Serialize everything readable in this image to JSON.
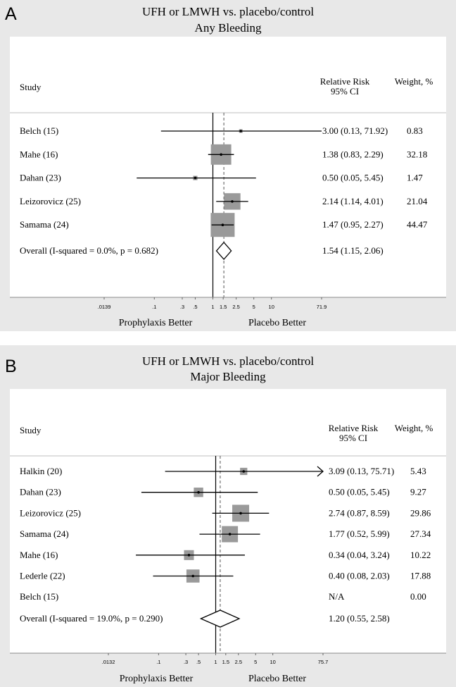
{
  "chart_data": [
    {
      "type": "forest",
      "panel_letter": "A",
      "title": "UFH or LMWH vs. placebo/control",
      "subtitle": "Any Bleeding",
      "columns": {
        "study": "Study",
        "rr_line1": "Relative Risk",
        "rr_line2": "95% CI",
        "weight": "Weight, %"
      },
      "xscale": "log",
      "xlim": [
        0.0139,
        71.9
      ],
      "ticks": [
        {
          "value": 0.0139,
          "label": ".0139"
        },
        {
          "value": 0.1,
          "label": ".1"
        },
        {
          "value": 0.3,
          "label": ".3"
        },
        {
          "value": 0.5,
          "label": ".5"
        },
        {
          "value": 1,
          "label": "1"
        },
        {
          "value": 1.5,
          "label": "1.5"
        },
        {
          "value": 2.5,
          "label": "2.5"
        },
        {
          "value": 5,
          "label": "5"
        },
        {
          "value": 10,
          "label": "10"
        },
        {
          "value": 71.9,
          "label": "71.9"
        }
      ],
      "studies": [
        {
          "name": "Belch (15)",
          "rr": 3.0,
          "lo": 0.13,
          "hi": 71.92,
          "ci_text": "3.00 (0.13, 71.92)",
          "weight": 0.83,
          "weight_text": "0.83"
        },
        {
          "name": "Mahe (16)",
          "rr": 1.38,
          "lo": 0.83,
          "hi": 2.29,
          "ci_text": "1.38 (0.83, 2.29)",
          "weight": 32.18,
          "weight_text": "32.18"
        },
        {
          "name": "Dahan (23)",
          "rr": 0.5,
          "lo": 0.05,
          "hi": 5.45,
          "ci_text": "0.50 (0.05, 5.45)",
          "weight": 1.47,
          "weight_text": "1.47"
        },
        {
          "name": "Leizorovicz (25)",
          "rr": 2.14,
          "lo": 1.14,
          "hi": 4.01,
          "ci_text": "2.14 (1.14, 4.01)",
          "weight": 21.04,
          "weight_text": "21.04"
        },
        {
          "name": "Samama (24)",
          "rr": 1.47,
          "lo": 0.95,
          "hi": 2.27,
          "ci_text": "1.47 (0.95, 2.27)",
          "weight": 44.47,
          "weight_text": "44.47"
        }
      ],
      "overall": {
        "label": "Overall  (I-squared = 0.0%, p = 0.682)",
        "rr": 1.54,
        "lo": 1.15,
        "hi": 2.06,
        "ci_text": "1.54 (1.15, 2.06)"
      },
      "left_label": "Prophylaxis Better",
      "right_label": "Placebo Better"
    },
    {
      "type": "forest",
      "panel_letter": "B",
      "title": "UFH or LMWH vs. placebo/control",
      "subtitle": "Major Bleeding",
      "columns": {
        "study": "Study",
        "rr_line1": "Relative Risk",
        "rr_line2": "95% CI",
        "weight": "Weight, %"
      },
      "xscale": "log",
      "xlim": [
        0.0132,
        75.7
      ],
      "ticks": [
        {
          "value": 0.0132,
          "label": ".0132"
        },
        {
          "value": 0.1,
          "label": ".1"
        },
        {
          "value": 0.3,
          "label": ".3"
        },
        {
          "value": 0.5,
          "label": ".5"
        },
        {
          "value": 1,
          "label": "1"
        },
        {
          "value": 1.5,
          "label": "1.5"
        },
        {
          "value": 2.5,
          "label": "2.5"
        },
        {
          "value": 5,
          "label": "5"
        },
        {
          "value": 10,
          "label": "10"
        },
        {
          "value": 75.7,
          "label": "75.7"
        }
      ],
      "studies": [
        {
          "name": "Halkin (20)",
          "rr": 3.09,
          "lo": 0.13,
          "hi": 75.71,
          "ci_text": "3.09 (0.13, 75.71)",
          "weight": 5.43,
          "weight_text": "5.43",
          "arrow_right": true
        },
        {
          "name": "Dahan (23)",
          "rr": 0.5,
          "lo": 0.05,
          "hi": 5.45,
          "ci_text": "0.50 (0.05, 5.45)",
          "weight": 9.27,
          "weight_text": "9.27"
        },
        {
          "name": "Leizorovicz (25)",
          "rr": 2.74,
          "lo": 0.87,
          "hi": 8.59,
          "ci_text": "2.74 (0.87, 8.59)",
          "weight": 29.86,
          "weight_text": "29.86"
        },
        {
          "name": "Samama (24)",
          "rr": 1.77,
          "lo": 0.52,
          "hi": 5.99,
          "ci_text": "1.77 (0.52, 5.99)",
          "weight": 27.34,
          "weight_text": "27.34"
        },
        {
          "name": "Mahe (16)",
          "rr": 0.34,
          "lo": 0.04,
          "hi": 3.24,
          "ci_text": "0.34 (0.04, 3.24)",
          "weight": 10.22,
          "weight_text": "10.22"
        },
        {
          "name": "Lederle (22)",
          "rr": 0.4,
          "lo": 0.08,
          "hi": 2.03,
          "ci_text": "0.40 (0.08, 2.03)",
          "weight": 17.88,
          "weight_text": "17.88"
        },
        {
          "name": "Belch (15)",
          "rr": null,
          "lo": null,
          "hi": null,
          "ci_text": "N/A",
          "weight": 0.0,
          "weight_text": "0.00"
        }
      ],
      "overall": {
        "label": "Overall  (I-squared = 19.0%, p = 0.290)",
        "rr": 1.2,
        "lo": 0.55,
        "hi": 2.58,
        "ci_text": "1.20 (0.55, 2.58)"
      },
      "left_label": "Prophylaxis Better",
      "right_label": "Placebo Better"
    }
  ],
  "colors": {
    "outer_background": "#e8e8e8",
    "plot_background": "#ffffff",
    "weight_box": "#9a9a9a",
    "line": "#000000",
    "dashed_line": "#555555",
    "separator": "#bfbfbf"
  }
}
